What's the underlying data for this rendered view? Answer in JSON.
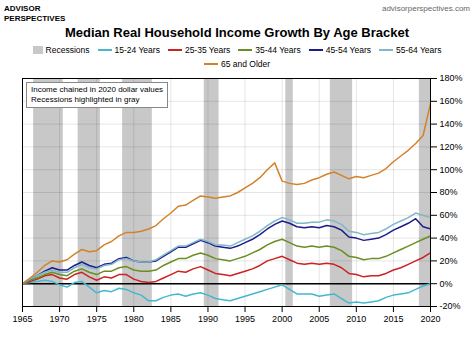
{
  "chart_data": {
    "type": "line",
    "title": "Median Real Household Income Growth By Age Bracket",
    "subtitle": "advisorperspectives.com",
    "annotations": [
      "ADVISOR\nPERSPECTIVES",
      "Income chained in 2020 dollar values\nRecessions highlighted in gray"
    ],
    "x": [
      1965,
      1966,
      1967,
      1968,
      1969,
      1970,
      1971,
      1972,
      1973,
      1974,
      1975,
      1976,
      1977,
      1978,
      1979,
      1980,
      1981,
      1982,
      1983,
      1984,
      1985,
      1986,
      1987,
      1988,
      1989,
      1990,
      1991,
      1992,
      1993,
      1994,
      1995,
      1996,
      1997,
      1998,
      1999,
      2000,
      2001,
      2002,
      2003,
      2004,
      2005,
      2006,
      2007,
      2008,
      2009,
      2010,
      2011,
      2012,
      2013,
      2014,
      2015,
      2016,
      2017,
      2018,
      2019,
      2020
    ],
    "series": [
      {
        "name": "15-24 Years",
        "color": "#45B8D0",
        "values": [
          0,
          1,
          2,
          3,
          2,
          -1,
          -3,
          1,
          2,
          -3,
          -8,
          -6,
          -7,
          -4,
          -5,
          -8,
          -10,
          -15,
          -15,
          -12,
          -10,
          -9,
          -11,
          -9,
          -8,
          -10,
          -13,
          -14,
          -15,
          -13,
          -11,
          -9,
          -7,
          -5,
          -3,
          -1,
          -5,
          -9,
          -9,
          -9,
          -11,
          -10,
          -9,
          -13,
          -17,
          -16,
          -17,
          -16,
          -15,
          -12,
          -10,
          -9,
          -8,
          -5,
          -2,
          0
        ]
      },
      {
        "name": "25-35 Years",
        "color": "#CC2222",
        "values": [
          0,
          2,
          4,
          7,
          8,
          5,
          4,
          8,
          10,
          6,
          3,
          6,
          5,
          8,
          8,
          4,
          2,
          1,
          2,
          5,
          8,
          11,
          10,
          13,
          15,
          12,
          9,
          8,
          7,
          9,
          11,
          13,
          16,
          20,
          22,
          24,
          21,
          18,
          17,
          18,
          17,
          18,
          17,
          14,
          9,
          8,
          6,
          7,
          7,
          9,
          12,
          14,
          17,
          20,
          23,
          27
        ]
      },
      {
        "name": "35-44 Years",
        "color": "#6B8E23",
        "values": [
          0,
          3,
          5,
          8,
          10,
          8,
          7,
          11,
          13,
          10,
          8,
          11,
          11,
          14,
          15,
          12,
          11,
          11,
          12,
          16,
          19,
          22,
          22,
          25,
          27,
          25,
          22,
          21,
          20,
          22,
          24,
          27,
          30,
          34,
          37,
          39,
          36,
          33,
          32,
          33,
          32,
          33,
          32,
          29,
          24,
          23,
          21,
          22,
          22,
          24,
          27,
          30,
          33,
          36,
          39,
          42
        ]
      },
      {
        "name": "45-54 Years",
        "color": "#1C1C8C",
        "values": [
          0,
          4,
          7,
          11,
          14,
          12,
          12,
          16,
          19,
          16,
          14,
          17,
          18,
          22,
          23,
          20,
          19,
          19,
          20,
          24,
          28,
          32,
          32,
          35,
          38,
          36,
          33,
          32,
          31,
          33,
          36,
          39,
          43,
          48,
          52,
          55,
          53,
          50,
          49,
          50,
          49,
          51,
          50,
          47,
          41,
          40,
          38,
          39,
          40,
          43,
          47,
          50,
          53,
          57,
          50,
          48
        ]
      },
      {
        "name": "55-64 Years",
        "color": "#7EB8C9",
        "values": [
          0,
          4,
          7,
          10,
          12,
          10,
          10,
          14,
          17,
          14,
          13,
          16,
          17,
          21,
          22,
          20,
          19,
          19,
          21,
          25,
          29,
          33,
          33,
          36,
          39,
          37,
          34,
          34,
          33,
          36,
          39,
          42,
          46,
          51,
          55,
          58,
          56,
          53,
          53,
          54,
          54,
          56,
          55,
          52,
          46,
          45,
          43,
          44,
          45,
          48,
          52,
          55,
          58,
          62,
          60,
          58
        ]
      },
      {
        "name": "65 and Older",
        "color": "#D4822A",
        "values": [
          0,
          5,
          10,
          16,
          20,
          19,
          21,
          26,
          30,
          28,
          29,
          34,
          37,
          42,
          45,
          45,
          46,
          48,
          51,
          57,
          62,
          68,
          69,
          73,
          77,
          76,
          75,
          76,
          77,
          80,
          84,
          88,
          93,
          100,
          106,
          90,
          88,
          87,
          88,
          91,
          93,
          96,
          98,
          95,
          92,
          94,
          93,
          95,
          97,
          101,
          107,
          112,
          117,
          123,
          130,
          158
        ]
      }
    ],
    "recessions": {
      "name": "Recessions",
      "color": "#C8C8C8",
      "bands": [
        [
          1967,
          1970
        ],
        [
          1973,
          1975
        ],
        [
          1979,
          1982
        ],
        [
          1990,
          1991
        ],
        [
          2001,
          2001
        ],
        [
          2007,
          2009
        ],
        [
          2019,
          2020
        ]
      ]
    },
    "xlim": [
      1965,
      2020
    ],
    "xticks": [
      1965,
      1970,
      1975,
      1980,
      1985,
      1990,
      1995,
      2000,
      2005,
      2010,
      2015,
      2020
    ],
    "ylim": [
      -20,
      180
    ],
    "yticks": [
      {
        "value": -20,
        "label": "-20%"
      },
      {
        "value": 0,
        "label": "0%"
      },
      {
        "value": 20,
        "label": "20%"
      },
      {
        "value": 40,
        "label": "40%"
      },
      {
        "value": 60,
        "label": "60%"
      },
      {
        "value": 80,
        "label": "80%"
      },
      {
        "value": 100,
        "label": "100%"
      },
      {
        "value": 120,
        "label": "120%"
      },
      {
        "value": 140,
        "label": "140%"
      },
      {
        "value": 160,
        "label": "160%"
      },
      {
        "value": 180,
        "label": "180%"
      }
    ],
    "grid": true
  }
}
